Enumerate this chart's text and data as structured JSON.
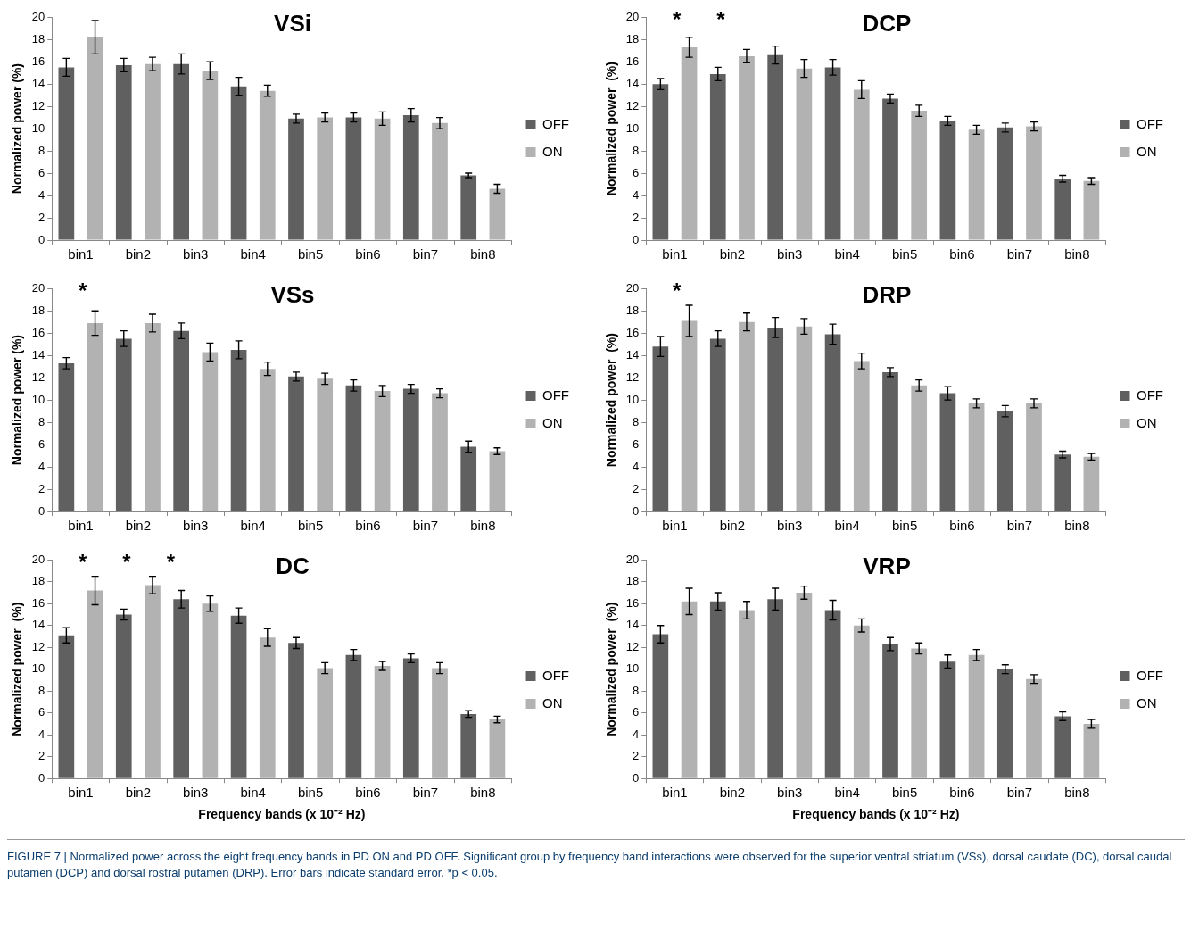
{
  "chart_data": [
    {
      "type": "bar",
      "title": "VSi",
      "ylabel": "Normalized power (%)",
      "categories": [
        "bin1",
        "bin2",
        "bin3",
        "bin4",
        "bin5",
        "bin6",
        "bin7",
        "bin8"
      ],
      "ylim": [
        0,
        20
      ],
      "yticks": [
        0,
        2,
        4,
        6,
        8,
        10,
        12,
        14,
        16,
        18,
        20
      ],
      "grid": false,
      "legend": "right",
      "series": [
        {
          "name": "OFF",
          "color": "#606060",
          "values": [
            15.5,
            15.7,
            15.8,
            13.8,
            10.9,
            11.0,
            11.2,
            5.8
          ],
          "errors": [
            0.8,
            0.6,
            0.9,
            0.8,
            0.4,
            0.4,
            0.6,
            0.2
          ]
        },
        {
          "name": "ON",
          "color": "#b2b2b2",
          "values": [
            18.2,
            15.8,
            15.2,
            13.4,
            11.0,
            10.9,
            10.5,
            4.6
          ],
          "errors": [
            1.5,
            0.6,
            0.8,
            0.5,
            0.4,
            0.6,
            0.5,
            0.4
          ]
        }
      ]
    },
    {
      "type": "bar",
      "title": "DCP",
      "ylabel": "Normalized power  (%)",
      "categories": [
        "bin1",
        "bin2",
        "bin3",
        "bin4",
        "bin5",
        "bin6",
        "bin7",
        "bin8"
      ],
      "ylim": [
        0,
        20
      ],
      "yticks": [
        0,
        2,
        4,
        6,
        8,
        10,
        12,
        14,
        16,
        18,
        20
      ],
      "grid": false,
      "legend": "right",
      "annotations": [
        "*",
        "*"
      ],
      "series": [
        {
          "name": "OFF",
          "color": "#606060",
          "values": [
            14.0,
            14.9,
            16.6,
            15.5,
            12.7,
            10.7,
            10.1,
            5.5
          ],
          "errors": [
            0.5,
            0.6,
            0.8,
            0.7,
            0.4,
            0.4,
            0.4,
            0.3
          ]
        },
        {
          "name": "ON",
          "color": "#b2b2b2",
          "values": [
            17.3,
            16.5,
            15.4,
            13.5,
            11.6,
            9.9,
            10.2,
            5.3
          ],
          "errors": [
            0.9,
            0.6,
            0.8,
            0.8,
            0.5,
            0.4,
            0.4,
            0.3
          ]
        }
      ]
    },
    {
      "type": "bar",
      "title": "VSs",
      "ylabel": "Normalized power (%)",
      "categories": [
        "bin1",
        "bin2",
        "bin3",
        "bin4",
        "bin5",
        "bin6",
        "bin7",
        "bin8"
      ],
      "ylim": [
        0,
        20
      ],
      "yticks": [
        0,
        2,
        4,
        6,
        8,
        10,
        12,
        14,
        16,
        18,
        20
      ],
      "grid": false,
      "legend": "right",
      "annotations": [
        "*"
      ],
      "series": [
        {
          "name": "OFF",
          "color": "#606060",
          "values": [
            13.3,
            15.5,
            16.2,
            14.5,
            12.1,
            11.3,
            11.0,
            5.8
          ],
          "errors": [
            0.5,
            0.7,
            0.7,
            0.8,
            0.4,
            0.5,
            0.4,
            0.5
          ]
        },
        {
          "name": "ON",
          "color": "#b2b2b2",
          "values": [
            16.9,
            16.9,
            14.3,
            12.8,
            11.9,
            10.8,
            10.6,
            5.4
          ],
          "errors": [
            1.1,
            0.8,
            0.8,
            0.6,
            0.5,
            0.5,
            0.4,
            0.3
          ]
        }
      ]
    },
    {
      "type": "bar",
      "title": "DRP",
      "ylabel": "Normalized power  (%)",
      "categories": [
        "bin1",
        "bin2",
        "bin3",
        "bin4",
        "bin5",
        "bin6",
        "bin7",
        "bin8"
      ],
      "ylim": [
        0,
        20
      ],
      "yticks": [
        0,
        2,
        4,
        6,
        8,
        10,
        12,
        14,
        16,
        18,
        20
      ],
      "grid": false,
      "legend": "right",
      "annotations": [
        "*"
      ],
      "series": [
        {
          "name": "OFF",
          "color": "#606060",
          "values": [
            14.8,
            15.5,
            16.5,
            15.9,
            12.5,
            10.6,
            9.0,
            5.1
          ],
          "errors": [
            0.9,
            0.7,
            0.9,
            0.9,
            0.4,
            0.6,
            0.5,
            0.3
          ]
        },
        {
          "name": "ON",
          "color": "#b2b2b2",
          "values": [
            17.1,
            17.0,
            16.6,
            13.5,
            11.3,
            9.7,
            9.7,
            4.9
          ],
          "errors": [
            1.4,
            0.8,
            0.7,
            0.7,
            0.5,
            0.4,
            0.4,
            0.3
          ]
        }
      ]
    },
    {
      "type": "bar",
      "title": "DC",
      "ylabel": "Normalized power  (%)",
      "xlabel": "Frequency bands (x 10⁻² Hz)",
      "categories": [
        "bin1",
        "bin2",
        "bin3",
        "bin4",
        "bin5",
        "bin6",
        "bin7",
        "bin8"
      ],
      "ylim": [
        0,
        20
      ],
      "yticks": [
        0,
        2,
        4,
        6,
        8,
        10,
        12,
        14,
        16,
        18,
        20
      ],
      "grid": false,
      "legend": "right",
      "annotations": [
        "*",
        "*",
        "*"
      ],
      "series": [
        {
          "name": "OFF",
          "color": "#606060",
          "values": [
            13.1,
            15.0,
            16.4,
            14.9,
            12.4,
            11.3,
            11.0,
            5.9
          ],
          "errors": [
            0.7,
            0.5,
            0.8,
            0.7,
            0.5,
            0.5,
            0.4,
            0.3
          ]
        },
        {
          "name": "ON",
          "color": "#b2b2b2",
          "values": [
            17.2,
            17.7,
            16.0,
            12.9,
            10.1,
            10.3,
            10.1,
            5.4
          ],
          "errors": [
            1.3,
            0.8,
            0.7,
            0.8,
            0.5,
            0.4,
            0.5,
            0.3
          ]
        }
      ]
    },
    {
      "type": "bar",
      "title": "VRP",
      "ylabel": "Normalized power  (%)",
      "xlabel": "Frequency bands (x 10⁻² Hz)",
      "categories": [
        "bin1",
        "bin2",
        "bin3",
        "bin4",
        "bin5",
        "bin6",
        "bin7",
        "bin8"
      ],
      "ylim": [
        0,
        20
      ],
      "yticks": [
        0,
        2,
        4,
        6,
        8,
        10,
        12,
        14,
        16,
        18,
        20
      ],
      "grid": false,
      "legend": "right",
      "annotations": [
        "FIGURE 7 | Normalized power across the eight frequency bands in PD ON and PD OFF. Significant group by frequency band interactions were observed for the superior ventral striatum (VSs), dorsal caudate (DC), dorsal caudal putamen (DCP) and dorsal rostral putamen (DRP). Error bars indicate standard error. *p < 0.05."
      ],
      "series": [
        {
          "name": "OFF",
          "color": "#606060",
          "values": [
            13.2,
            16.2,
            16.4,
            15.4,
            12.3,
            10.7,
            10.0,
            5.7
          ],
          "errors": [
            0.8,
            0.8,
            1.0,
            0.9,
            0.6,
            0.6,
            0.4,
            0.4
          ]
        },
        {
          "name": "ON",
          "color": "#b2b2b2",
          "values": [
            16.2,
            15.4,
            17.0,
            14.0,
            11.9,
            11.3,
            9.1,
            5.0
          ],
          "errors": [
            1.2,
            0.8,
            0.6,
            0.6,
            0.5,
            0.5,
            0.4,
            0.4
          ]
        }
      ]
    }
  ]
}
